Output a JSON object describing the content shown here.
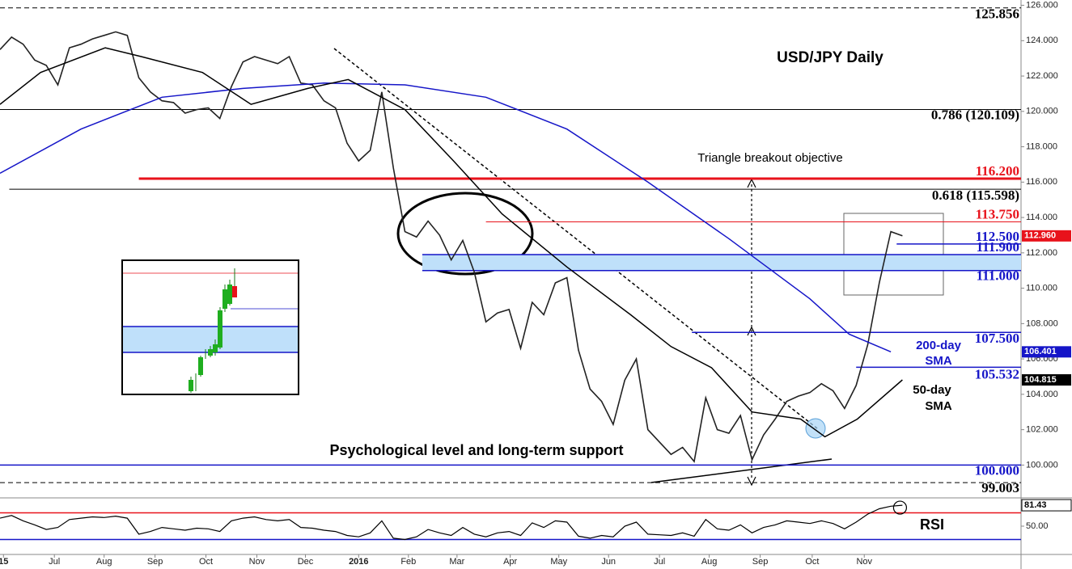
{
  "chart_data": {
    "type": "line",
    "title": "USD/JPY Daily",
    "xlim": [
      0,
      88.25
    ],
    "xticks": [
      {
        "value": 0.3,
        "label": "15"
      },
      {
        "value": 4.7,
        "label": "Jul"
      },
      {
        "value": 9.0,
        "label": "Aug"
      },
      {
        "value": 13.4,
        "label": "Sep"
      },
      {
        "value": 17.8,
        "label": "Oct"
      },
      {
        "value": 22.2,
        "label": "Nov"
      },
      {
        "value": 26.4,
        "label": "Dec"
      },
      {
        "value": 31.0,
        "label": "2016"
      },
      {
        "value": 35.3,
        "label": "Feb"
      },
      {
        "value": 39.5,
        "label": "Mar"
      },
      {
        "value": 44.1,
        "label": "Apr"
      },
      {
        "value": 48.3,
        "label": "May"
      },
      {
        "value": 52.6,
        "label": "Jun"
      },
      {
        "value": 57.0,
        "label": "Jul"
      },
      {
        "value": 61.3,
        "label": "Aug"
      },
      {
        "value": 65.7,
        "label": "Sep"
      },
      {
        "value": 70.2,
        "label": "Oct"
      },
      {
        "value": 74.7,
        "label": "Nov"
      }
    ],
    "ylim": [
      98.6,
      126.3
    ],
    "yticks": [
      {
        "value": 100,
        "label": "100.000"
      },
      {
        "value": 102,
        "label": "102.000"
      },
      {
        "value": 104,
        "label": "104.000"
      },
      {
        "value": 106,
        "label": "106.000"
      },
      {
        "value": 108,
        "label": "108.000"
      },
      {
        "value": 110,
        "label": "110.000"
      },
      {
        "value": 112,
        "label": "112.000"
      },
      {
        "value": 114,
        "label": "114.000"
      },
      {
        "value": 116,
        "label": "116.000"
      },
      {
        "value": 118,
        "label": "118.000"
      },
      {
        "value": 120,
        "label": "120.000"
      },
      {
        "value": 122,
        "label": "122.000"
      },
      {
        "value": 124,
        "label": "124.000"
      },
      {
        "value": 126,
        "label": "126.000"
      }
    ],
    "series": [
      {
        "color": "#222222",
        "tag_color": "#e8121b",
        "last_label": "112.960",
        "x": [
          0,
          1,
          2,
          3,
          4,
          5,
          6,
          7,
          8,
          9,
          10,
          11,
          12,
          13,
          14,
          15,
          16,
          17,
          18,
          19,
          20,
          21,
          22,
          23,
          24,
          25,
          26,
          27,
          28,
          29,
          30,
          31,
          32,
          33,
          34,
          35,
          36,
          37,
          38,
          39,
          40,
          41,
          42,
          43,
          44,
          45,
          46,
          47,
          48,
          49,
          50,
          51,
          52,
          53,
          54,
          55,
          56,
          57,
          58,
          59,
          60,
          61,
          62,
          63,
          64,
          65,
          66,
          67,
          68,
          69,
          70,
          71,
          72,
          73,
          74,
          75,
          76,
          77,
          78
        ],
        "values": [
          123.5,
          124.2,
          123.8,
          122.9,
          122.6,
          121.5,
          123.6,
          123.8,
          124.1,
          124.3,
          124.5,
          124.3,
          121.9,
          121.1,
          120.6,
          120.5,
          119.9,
          120.1,
          120.2,
          119.6,
          121.4,
          122.8,
          123.1,
          122.9,
          122.7,
          123.1,
          121.6,
          121.5,
          120.6,
          120.2,
          118.2,
          117.2,
          117.8,
          121.1,
          116.8,
          113.2,
          112.9,
          113.8,
          113.0,
          111.6,
          112.7,
          110.9,
          108.1,
          108.6,
          108.8,
          106.6,
          109.2,
          108.5,
          110.3,
          110.6,
          106.5,
          104.3,
          103.6,
          102.3,
          104.8,
          106.0,
          102.0,
          101.3,
          100.6,
          101.0,
          100.2,
          103.8,
          102.0,
          101.8,
          102.8,
          100.3,
          101.7,
          102.6,
          103.6,
          103.9,
          104.1,
          104.6,
          104.2,
          103.2,
          104.5,
          106.8,
          110.3,
          113.2,
          112.96
        ]
      },
      {
        "color": "#1515c8",
        "tag_color": "#1515c8",
        "x": [
          0,
          7,
          14,
          21,
          28,
          35,
          42,
          49,
          56,
          63,
          70,
          73.4,
          77
        ],
        "values": [
          116.5,
          119,
          120.8,
          121.3,
          121.6,
          121.5,
          120.8,
          119,
          116,
          112.8,
          109.4,
          107.4,
          106.401
        ]
      },
      {
        "color": "#000000",
        "tag_color": "#000000",
        "x": [
          0,
          3.5,
          9.1,
          12.2,
          17.5,
          21.7,
          26.6,
          30.1,
          35,
          39.2,
          43.4,
          49,
          54.5,
          58,
          61.5,
          65,
          69.2,
          71.3,
          74.1,
          78
        ],
        "values": [
          120.4,
          122.2,
          123.6,
          123.1,
          122.2,
          120.4,
          121.3,
          121.8,
          120.1,
          117.2,
          114.2,
          111.2,
          108.5,
          106.7,
          105.5,
          103,
          102.6,
          101.6,
          102.6,
          104.815
        ]
      }
    ],
    "levels": [
      {
        "value": 125.856,
        "label": "125.856",
        "color": "#000000",
        "x0": 0,
        "dash": true
      },
      {
        "value": 120.109,
        "label": "0.786 (120.109)",
        "color": "#000000",
        "x0": 0
      },
      {
        "value": 116.2,
        "label": "116.200",
        "color": "#e8121b",
        "x0": 12
      },
      {
        "value": 115.598,
        "label": "0.618 (115.598)",
        "color": "#000000",
        "x0": 0.8
      },
      {
        "value": 113.75,
        "label": "113.750",
        "color": "#e8121b",
        "x0": 42
      },
      {
        "value": 112.5,
        "label": "112.500",
        "color": "#1515c8",
        "x0": 77.5
      },
      {
        "value": 111.9,
        "label": "111.900",
        "color": "#1515c8",
        "x0": 36.5
      },
      {
        "value": 111.0,
        "label": "111.000",
        "color": "#1515c8",
        "x0": 36.5
      },
      {
        "value": 107.5,
        "label": "107.500",
        "color": "#1515c8",
        "x0": 59.8
      },
      {
        "value": 105.532,
        "label": "105.532",
        "color": "#1515c8",
        "x0": 74
      },
      {
        "value": 100.0,
        "label": "100.000",
        "color": "#1515c8",
        "x0": 0
      },
      {
        "value": 99.003,
        "label": "99.003",
        "color": "#000000",
        "x0": 0,
        "dash": true
      }
    ],
    "annotations": [
      "Triangle breakout objective",
      "Psychological level and long-term support",
      "200-day",
      "SMA",
      "50-day",
      "SMA"
    ],
    "rsi": {
      "title": "RSI",
      "color": "#000000",
      "ylim": [
        10,
        90
      ],
      "yticks": [
        {
          "value": 50,
          "label": "50.00"
        }
      ],
      "levels": [
        {
          "value": 70,
          "color": "#e8121b"
        },
        {
          "value": 30,
          "color": "#1515c8"
        }
      ],
      "values": [
        62,
        66,
        58,
        52,
        45,
        48,
        60,
        62,
        64,
        63,
        65,
        62,
        38,
        42,
        48,
        46,
        44,
        47,
        46,
        42,
        58,
        62,
        64,
        60,
        58,
        60,
        48,
        47,
        44,
        42,
        36,
        34,
        40,
        58,
        32,
        30,
        34,
        45,
        40,
        36,
        48,
        38,
        34,
        40,
        42,
        36,
        55,
        48,
        58,
        56,
        35,
        32,
        36,
        34,
        50,
        56,
        38,
        37,
        36,
        40,
        35,
        60,
        46,
        44,
        52,
        40,
        48,
        52,
        58,
        56,
        54,
        58,
        54,
        46,
        56,
        68,
        76,
        80,
        81.43
      ]
    }
  }
}
